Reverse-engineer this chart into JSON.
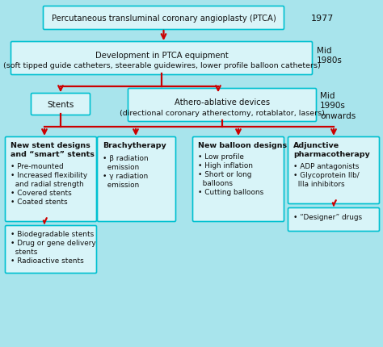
{
  "background_color": "#a8e4ec",
  "box_fill": "#d8f4f8",
  "box_border": "#00c0d0",
  "arrow_color": "#cc0000",
  "text_color": "#111111",
  "title": "Percutaneous transluminal coronary angioplasty (PTCA)",
  "year_1977": "1977",
  "box2_line1": "Development in PTCA equipment",
  "box2_line2": "(soft tipped guide catheters, steerable guidewires, lower profile balloon catheters)",
  "year_mid1980s": "Mid\n1980s",
  "box3a_text": "Stents",
  "box3b_line1": "Athero-ablative devices",
  "box3b_line2": "(directional coronary atherectomy, rotablator, lasers)",
  "year_mid1990s": "Mid\n1990s\nonwards",
  "box4a_title": "New stent designs\nand “smart” stents",
  "box4a_body": "• Pre-mounted\n• Increased flexibility\n  and radial strength\n• Covered stents\n• Coated stents",
  "box4a_extra": "• Biodegradable stents\n• Drug or gene delivery\n  stents\n• Radioactive stents",
  "box4b_title": "Brachytherapy",
  "box4b_body": "• β radiation\n  emission\n• γ radiation\n  emission",
  "box4c_title": "New balloon designs",
  "box4c_body": "• Low profile\n• High inflation\n• Short or long\n  balloons\n• Cutting balloons",
  "box4d_title": "Adjunctive\npharmacotherapy",
  "box4d_body": "• ADP antagonists\n• Glycoprotein IIb/\n  IIIa inhibitors",
  "box4d_extra": "• “Designer” drugs"
}
